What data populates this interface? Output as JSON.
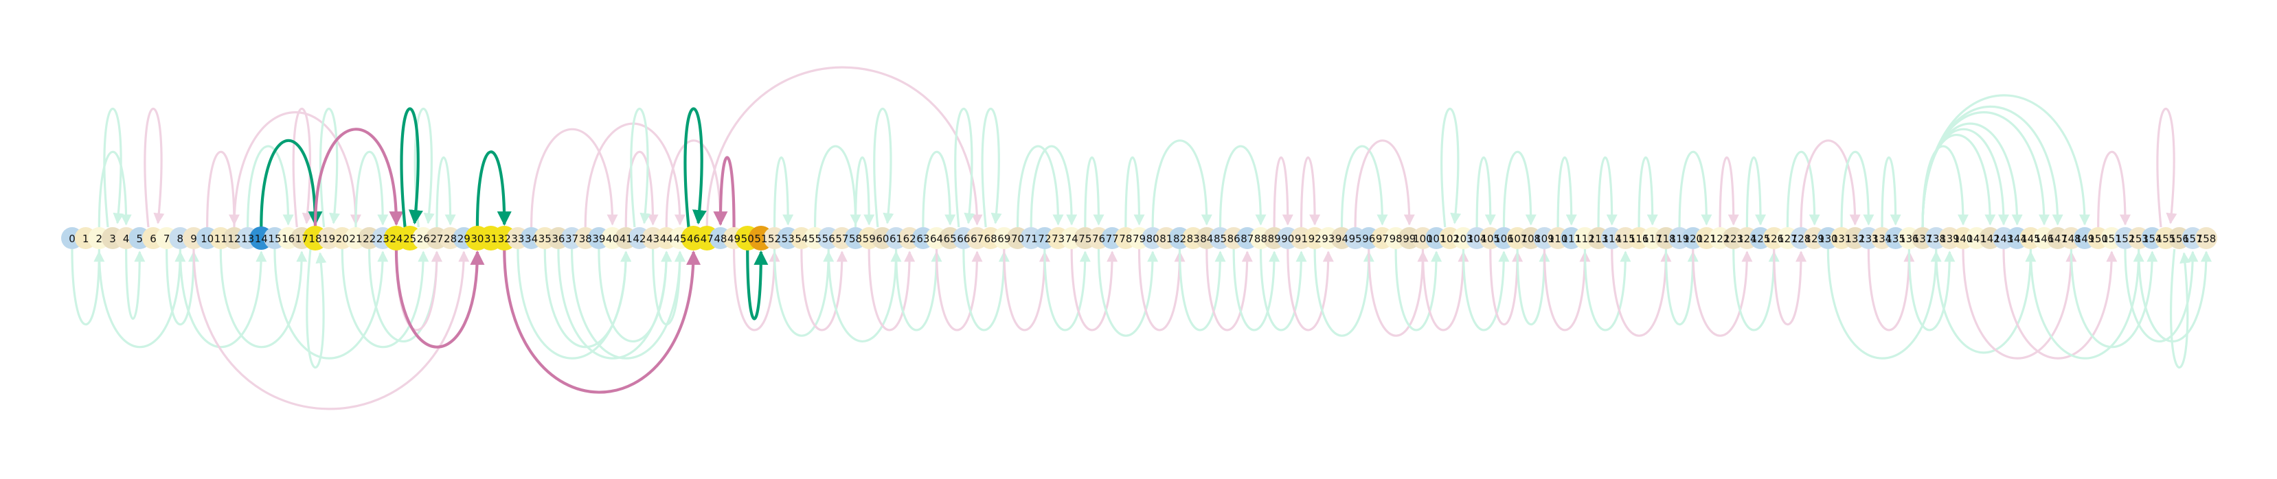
{
  "chart_data": {
    "type": "arc-diagram",
    "node_count": 159,
    "labels": [
      "0",
      "1",
      "2",
      "3",
      "4",
      "5",
      "6",
      "7",
      "8",
      "9",
      "10",
      "11",
      "12",
      "13",
      "14",
      "15",
      "16",
      "17",
      "18",
      "19",
      "20",
      "21",
      "22",
      "23",
      "24",
      "25",
      "26",
      "27",
      "28",
      "29",
      "30",
      "31",
      "32",
      "33",
      "34",
      "35",
      "36",
      "37",
      "38",
      "39",
      "40",
      "41",
      "42",
      "43",
      "44",
      "45",
      "46",
      "47",
      "48",
      "49",
      "50",
      "51",
      "52",
      "53",
      "54",
      "55",
      "56",
      "57",
      "58",
      "59",
      "60",
      "61",
      "62",
      "63",
      "64",
      "65",
      "66",
      "67",
      "68",
      "69",
      "70",
      "71",
      "72",
      "73",
      "74",
      "75",
      "76",
      "77",
      "78",
      "79",
      "80",
      "81",
      "82",
      "83",
      "84",
      "85",
      "86",
      "87",
      "88",
      "89",
      "90",
      "91",
      "92",
      "93",
      "94",
      "95",
      "96",
      "97",
      "98",
      "99",
      "100",
      "101",
      "102",
      "103",
      "104",
      "105",
      "106",
      "107",
      "108",
      "109",
      "110",
      "111",
      "112",
      "113",
      "114",
      "115",
      "116",
      "117",
      "118",
      "119",
      "120",
      "121",
      "122",
      "123",
      "124",
      "125",
      "126",
      "127",
      "128",
      "129",
      "130",
      "131",
      "132",
      "133",
      "134",
      "135",
      "136",
      "137",
      "138",
      "139",
      "140",
      "141",
      "142",
      "143",
      "144",
      "145",
      "146",
      "147",
      "148",
      "149",
      "150",
      "151",
      "152",
      "153",
      "154",
      "155",
      "156",
      "157",
      "158"
    ],
    "highlighted_nodes": {
      "gold": [
        18,
        24,
        25,
        30,
        31,
        32,
        46,
        47,
        50
      ],
      "orange": [
        51
      ],
      "blue": [
        14
      ]
    },
    "edge_colors": {
      "green": "#009E73",
      "pink": "#CC79A7",
      "light_green": "#CDF3E4",
      "light_pink": "#F0D3E2"
    },
    "highlighted_edges": [
      {
        "source": 14,
        "target": 18,
        "side": "top",
        "color": "green"
      },
      {
        "source": 18,
        "target": 24,
        "side": "top",
        "color": "pink"
      },
      {
        "source": 25,
        "target": 25,
        "side": "top",
        "color": "green",
        "loop": true
      },
      {
        "source": 30,
        "target": 32,
        "side": "top",
        "color": "green"
      },
      {
        "source": 46,
        "target": 46,
        "side": "top",
        "color": "green",
        "loop": true
      },
      {
        "source": 49,
        "target": 48,
        "side": "top",
        "color": "pink"
      },
      {
        "source": 24,
        "target": 30,
        "side": "bottom",
        "color": "pink"
      },
      {
        "source": 32,
        "target": 46,
        "side": "bottom",
        "color": "pink"
      },
      {
        "source": 50,
        "target": 51,
        "side": "bottom",
        "color": "green"
      }
    ],
    "background_edges": [
      [
        2,
        4,
        "top",
        "green"
      ],
      [
        3,
        3,
        "top",
        "green",
        true
      ],
      [
        6,
        6,
        "top",
        "pink",
        true
      ],
      [
        10,
        12,
        "top",
        "pink"
      ],
      [
        13,
        16,
        "top",
        "green"
      ],
      [
        12,
        21,
        "top",
        "pink"
      ],
      [
        17,
        17,
        "top",
        "pink",
        true
      ],
      [
        19,
        19,
        "top",
        "green",
        true
      ],
      [
        21,
        23,
        "top",
        "green"
      ],
      [
        26,
        26,
        "top",
        "green",
        true
      ],
      [
        27,
        28,
        "top",
        "green"
      ],
      [
        34,
        40,
        "top",
        "pink"
      ],
      [
        38,
        45,
        "top",
        "pink"
      ],
      [
        41,
        43,
        "top",
        "pink"
      ],
      [
        42,
        42,
        "top",
        "green",
        true
      ],
      [
        44,
        48,
        "top",
        "pink"
      ],
      [
        52,
        53,
        "top",
        "green"
      ],
      [
        47,
        67,
        "top",
        "pink"
      ],
      [
        55,
        58,
        "top",
        "green"
      ],
      [
        58,
        59,
        "top",
        "green"
      ],
      [
        60,
        60,
        "top",
        "green",
        true
      ],
      [
        63,
        65,
        "top",
        "green"
      ],
      [
        66,
        66,
        "top",
        "green",
        true
      ],
      [
        68,
        68,
        "top",
        "green",
        true
      ],
      [
        70,
        73,
        "top",
        "green"
      ],
      [
        71,
        74,
        "top",
        "green"
      ],
      [
        75,
        76,
        "top",
        "green"
      ],
      [
        78,
        79,
        "top",
        "green"
      ],
      [
        80,
        84,
        "top",
        "green"
      ],
      [
        85,
        88,
        "top",
        "green"
      ],
      [
        89,
        90,
        "top",
        "pink"
      ],
      [
        91,
        92,
        "top",
        "pink"
      ],
      [
        94,
        97,
        "top",
        "green"
      ],
      [
        95,
        99,
        "top",
        "pink"
      ],
      [
        102,
        102,
        "top",
        "green",
        true
      ],
      [
        104,
        105,
        "top",
        "green"
      ],
      [
        106,
        108,
        "top",
        "green"
      ],
      [
        110,
        111,
        "top",
        "green"
      ],
      [
        113,
        114,
        "top",
        "green"
      ],
      [
        116,
        117,
        "top",
        "green"
      ],
      [
        119,
        121,
        "top",
        "green"
      ],
      [
        122,
        123,
        "top",
        "pink"
      ],
      [
        124,
        125,
        "top",
        "green"
      ],
      [
        127,
        129,
        "top",
        "green"
      ],
      [
        128,
        132,
        "top",
        "pink"
      ],
      [
        131,
        133,
        "top",
        "green"
      ],
      [
        134,
        135,
        "top",
        "green"
      ],
      [
        137,
        140,
        "top",
        "green"
      ],
      [
        137,
        142,
        "top",
        "green"
      ],
      [
        137,
        143,
        "top",
        "green"
      ],
      [
        137,
        144,
        "top",
        "green"
      ],
      [
        137,
        146,
        "top",
        "green"
      ],
      [
        137,
        147,
        "top",
        "green"
      ],
      [
        137,
        149,
        "top",
        "green"
      ],
      [
        150,
        152,
        "top",
        "pink"
      ],
      [
        155,
        155,
        "top",
        "pink",
        true
      ],
      [
        0,
        2,
        "bottom",
        "green"
      ],
      [
        2,
        8,
        "bottom",
        "green"
      ],
      [
        4,
        5,
        "bottom",
        "green"
      ],
      [
        7,
        9,
        "bottom",
        "green"
      ],
      [
        8,
        14,
        "bottom",
        "green"
      ],
      [
        9,
        29,
        "bottom",
        "pink"
      ],
      [
        11,
        17,
        "bottom",
        "green"
      ],
      [
        15,
        23,
        "bottom",
        "green"
      ],
      [
        18,
        18,
        "bottom",
        "green",
        true
      ],
      [
        20,
        26,
        "bottom",
        "green"
      ],
      [
        22,
        27,
        "bottom",
        "green"
      ],
      [
        24,
        27,
        "bottom",
        "pink"
      ],
      [
        33,
        41,
        "bottom",
        "green"
      ],
      [
        35,
        41,
        "bottom",
        "green"
      ],
      [
        36,
        44,
        "bottom",
        "green"
      ],
      [
        37,
        45,
        "bottom",
        "green"
      ],
      [
        39,
        44,
        "bottom",
        "green"
      ],
      [
        43,
        45,
        "bottom",
        "green"
      ],
      [
        49,
        52,
        "bottom",
        "pink"
      ],
      [
        52,
        56,
        "bottom",
        "green"
      ],
      [
        54,
        57,
        "bottom",
        "pink"
      ],
      [
        56,
        61,
        "bottom",
        "green"
      ],
      [
        59,
        62,
        "bottom",
        "pink"
      ],
      [
        61,
        64,
        "bottom",
        "green"
      ],
      [
        64,
        67,
        "bottom",
        "pink"
      ],
      [
        66,
        69,
        "bottom",
        "green"
      ],
      [
        69,
        72,
        "bottom",
        "pink"
      ],
      [
        72,
        75,
        "bottom",
        "green"
      ],
      [
        74,
        77,
        "bottom",
        "pink"
      ],
      [
        76,
        80,
        "bottom",
        "green"
      ],
      [
        79,
        82,
        "bottom",
        "pink"
      ],
      [
        82,
        85,
        "bottom",
        "green"
      ],
      [
        84,
        87,
        "bottom",
        "pink"
      ],
      [
        86,
        89,
        "bottom",
        "green"
      ],
      [
        88,
        91,
        "bottom",
        "green"
      ],
      [
        90,
        93,
        "bottom",
        "pink"
      ],
      [
        92,
        96,
        "bottom",
        "green"
      ],
      [
        96,
        100,
        "bottom",
        "pink"
      ],
      [
        98,
        101,
        "bottom",
        "green"
      ],
      [
        100,
        103,
        "bottom",
        "pink"
      ],
      [
        103,
        106,
        "bottom",
        "green"
      ],
      [
        105,
        107,
        "bottom",
        "pink"
      ],
      [
        107,
        109,
        "bottom",
        "green"
      ],
      [
        109,
        112,
        "bottom",
        "pink"
      ],
      [
        112,
        115,
        "bottom",
        "green"
      ],
      [
        114,
        118,
        "bottom",
        "pink"
      ],
      [
        118,
        120,
        "bottom",
        "green"
      ],
      [
        120,
        124,
        "bottom",
        "pink"
      ],
      [
        123,
        126,
        "bottom",
        "green"
      ],
      [
        126,
        128,
        "bottom",
        "pink"
      ],
      [
        130,
        138,
        "bottom",
        "green"
      ],
      [
        133,
        136,
        "bottom",
        "pink"
      ],
      [
        136,
        139,
        "bottom",
        "green"
      ],
      [
        138,
        145,
        "bottom",
        "green"
      ],
      [
        140,
        148,
        "bottom",
        "pink"
      ],
      [
        143,
        151,
        "bottom",
        "pink"
      ],
      [
        145,
        153,
        "bottom",
        "green"
      ],
      [
        148,
        154,
        "bottom",
        "green"
      ],
      [
        152,
        157,
        "bottom",
        "green"
      ],
      [
        153,
        158,
        "bottom",
        "green"
      ],
      [
        156,
        156,
        "bottom",
        "green",
        true
      ]
    ]
  }
}
